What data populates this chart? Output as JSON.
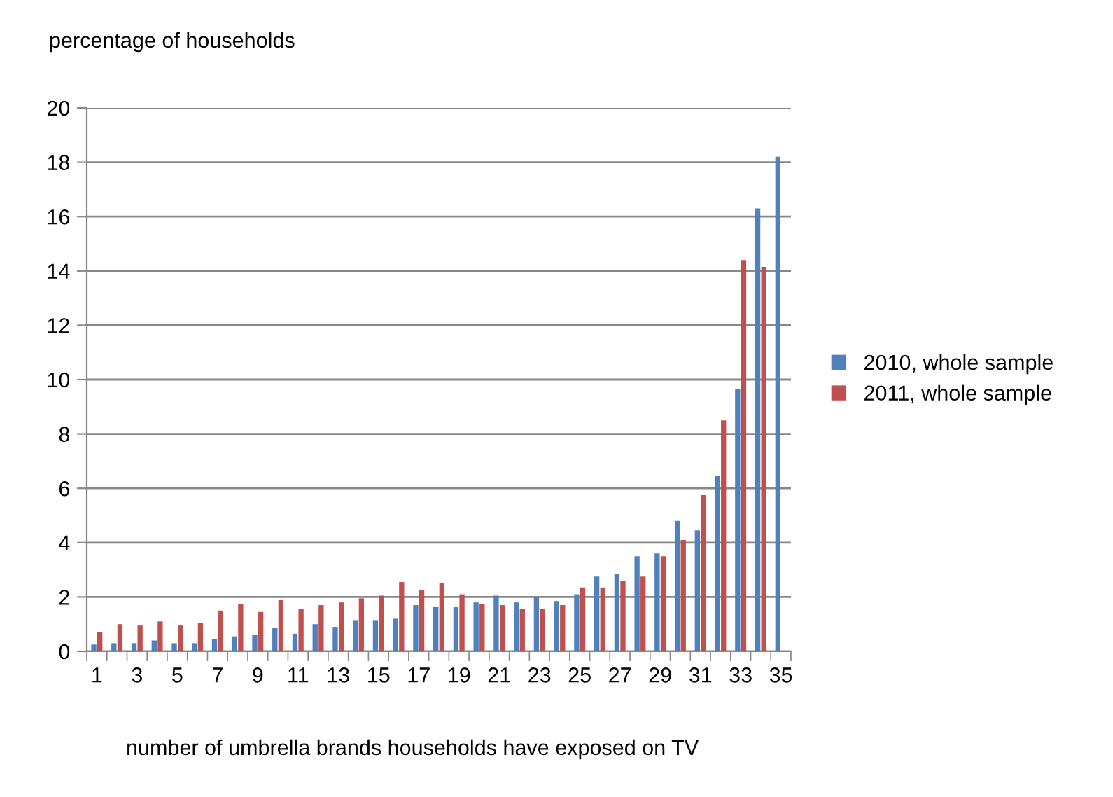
{
  "chart_data": {
    "type": "bar",
    "ylabel": "percentage of households",
    "xlabel": "number of umbrella brands households have exposed on TV",
    "categories": [
      "1",
      null,
      "3",
      null,
      "5",
      null,
      "7",
      null,
      "9",
      null,
      "11",
      null,
      "13",
      null,
      "15",
      null,
      "17",
      null,
      "19",
      null,
      "21",
      null,
      "23",
      null,
      "25",
      null,
      "27",
      null,
      "29",
      null,
      "31",
      null,
      "33",
      null,
      "35"
    ],
    "series": [
      {
        "name": "2010, whole sample",
        "color": "#4f81bd",
        "values": [
          0.25,
          0.3,
          0.3,
          0.4,
          0.3,
          0.3,
          0.45,
          0.55,
          0.6,
          0.85,
          0.65,
          1.0,
          0.9,
          1.15,
          1.15,
          1.2,
          1.7,
          1.65,
          1.65,
          1.8,
          2.05,
          1.8,
          2.0,
          1.85,
          2.1,
          2.75,
          2.85,
          3.5,
          3.6,
          4.8,
          4.45,
          6.45,
          9.65,
          16.3,
          18.2
        ]
      },
      {
        "name": "2011, whole sample",
        "color": "#c0504d",
        "values": [
          0.7,
          1.0,
          0.95,
          1.1,
          0.95,
          1.05,
          1.5,
          1.75,
          1.45,
          1.9,
          1.55,
          1.7,
          1.8,
          1.95,
          2.05,
          2.55,
          2.25,
          2.5,
          2.1,
          1.75,
          1.7,
          1.55,
          1.55,
          1.7,
          2.35,
          2.35,
          2.6,
          2.75,
          3.5,
          4.1,
          5.75,
          8.5,
          14.4,
          14.15,
          null
        ]
      }
    ],
    "ylim": [
      0,
      20
    ],
    "yticks": [
      0,
      2,
      4,
      6,
      8,
      10,
      12,
      14,
      16,
      18,
      20
    ],
    "grid": "y",
    "legend": "right"
  }
}
